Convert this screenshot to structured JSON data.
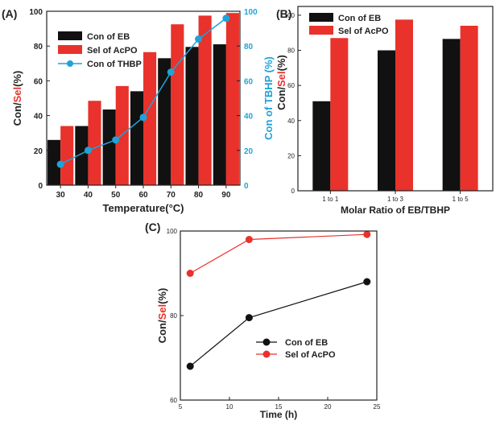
{
  "colors": {
    "black_series": "#111111",
    "red_series": "#e8322b",
    "blue_series": "#1ea3d8",
    "axis": "#222222",
    "sel_text": "#e8322b"
  },
  "chart_data": [
    {
      "panel_label": "(A)",
      "type": "bar",
      "categories": [
        "30",
        "40",
        "50",
        "60",
        "70",
        "80",
        "90"
      ],
      "series": [
        {
          "name": "Con of EB",
          "values": [
            26,
            34,
            43.5,
            54,
            73,
            79.5,
            81
          ],
          "axis": "left"
        },
        {
          "name": "Sel of AcPO",
          "values": [
            34,
            48.5,
            57,
            76.5,
            92.5,
            97.5,
            99
          ],
          "axis": "left"
        },
        {
          "name": "Con of THBP",
          "type": "line",
          "values": [
            12,
            20,
            26,
            39,
            65,
            84,
            96
          ],
          "axis": "right"
        }
      ],
      "xlabel": "Temperature(°C)",
      "ylabel_left": {
        "part1": "Con/",
        "part2": "Sel",
        "part3": "(%)"
      },
      "ylabel_right": "Con of TBHP (%)",
      "ylim": [
        0,
        100
      ],
      "y_ticks": [
        "0",
        "20",
        "40",
        "60",
        "80",
        "100"
      ],
      "y2lim": [
        0,
        100
      ],
      "y2_ticks": [
        "0",
        "20",
        "40",
        "60",
        "80",
        "100"
      ],
      "legend_position": "top-left"
    },
    {
      "panel_label": "(B)",
      "type": "bar",
      "categories": [
        "1 to 1",
        "1 to 3",
        "1 to 5"
      ],
      "series": [
        {
          "name": "Con of EB",
          "values": [
            51,
            80,
            86.5
          ]
        },
        {
          "name": "Sel of AcPO",
          "values": [
            87,
            97.5,
            94
          ]
        }
      ],
      "xlabel": "Molar Ratio of EB/TBHP",
      "ylabel": {
        "part1": "Con/",
        "part2": "Sel",
        "part3": "(%)"
      },
      "ylim": [
        0,
        105
      ],
      "y_ticks": [
        "0",
        "20",
        "40",
        "60",
        "80",
        "100"
      ],
      "legend_position": "top-left"
    },
    {
      "panel_label": "(C)",
      "type": "line",
      "x": [
        6,
        12,
        24
      ],
      "series": [
        {
          "name": "Con of EB",
          "values": [
            68,
            79.5,
            88
          ]
        },
        {
          "name": "Sel of AcPO",
          "values": [
            90,
            98,
            99.2
          ]
        }
      ],
      "xlabel": "Time (h)",
      "ylabel": {
        "part1": "Con/",
        "part2": "Sel",
        "part3": "(%)"
      },
      "xlim": [
        5,
        25
      ],
      "x_ticks": [
        "5",
        "10",
        "15",
        "20",
        "25"
      ],
      "ylim": [
        60,
        100
      ],
      "y_ticks": [
        "60",
        "80",
        "100"
      ],
      "legend_position": "bottom-center"
    }
  ]
}
